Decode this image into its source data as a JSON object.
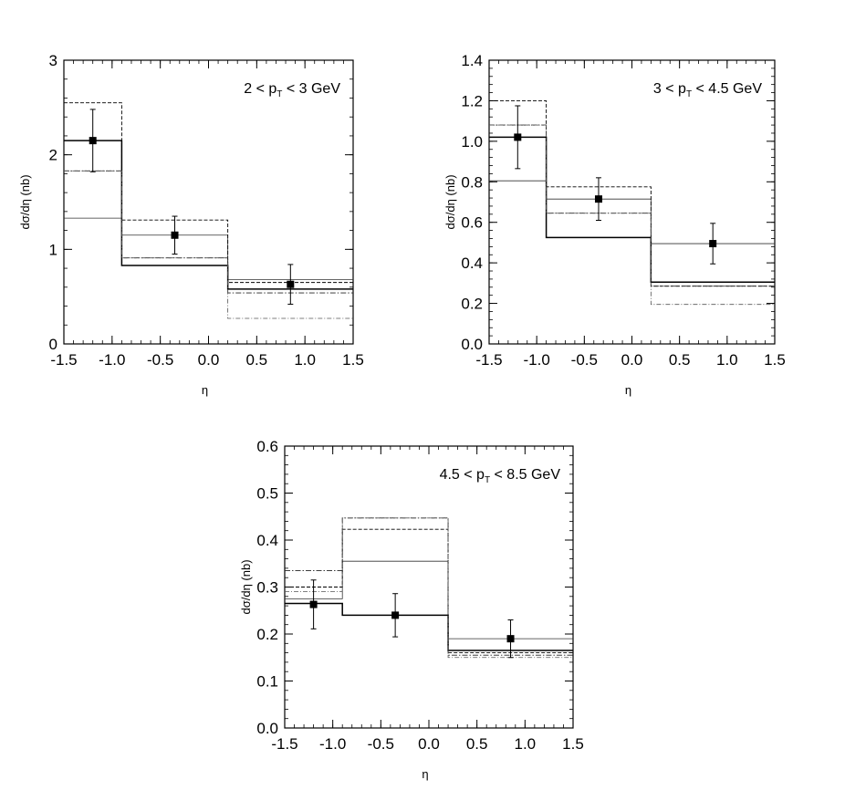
{
  "chart_data": [
    {
      "type": "step",
      "panel_label": {
        "pre": "2 < p",
        "sub": "T",
        "post": " < 3 GeV"
      },
      "xlabel": "η",
      "ylabel": "dσ/dη (nb)",
      "xlim": [
        -1.5,
        1.5
      ],
      "ylim": [
        0,
        3
      ],
      "xticks": [
        "-1.5",
        "-1.0",
        "-0.5",
        "0.0",
        "0.5",
        "1.0",
        "1.5"
      ],
      "yticks": [
        "0",
        "1",
        "2",
        "3"
      ],
      "bin_edges": [
        -1.5,
        -0.9,
        0.2,
        1.5
      ],
      "data_points": [
        {
          "x": -1.2,
          "y": 2.15,
          "err": 0.33
        },
        {
          "x": -0.35,
          "y": 1.15,
          "err": 0.2
        },
        {
          "x": 0.85,
          "y": 0.63,
          "err": 0.21
        }
      ],
      "curves": [
        {
          "style": "solid-thick",
          "values": [
            2.15,
            0.83,
            0.58
          ]
        },
        {
          "style": "solid-thin",
          "values": [
            1.33,
            1.15,
            0.68
          ]
        },
        {
          "style": "dashed",
          "values": [
            2.55,
            1.31,
            0.65
          ]
        },
        {
          "style": "dashdot",
          "values": [
            1.83,
            0.91,
            0.54
          ]
        },
        {
          "style": "dashdot-gray",
          "values": [
            1.83,
            0.91,
            0.27
          ]
        }
      ]
    },
    {
      "type": "step",
      "panel_label": {
        "pre": "3 < p",
        "sub": "T",
        "post": " < 4.5 GeV"
      },
      "xlabel": "η",
      "ylabel": "dσ/dη (nb)",
      "xlim": [
        -1.5,
        1.5
      ],
      "ylim": [
        0,
        1.4
      ],
      "xticks": [
        "-1.5",
        "-1.0",
        "-0.5",
        "0.0",
        "0.5",
        "1.0",
        "1.5"
      ],
      "yticks": [
        "0.0",
        "0.2",
        "0.4",
        "0.6",
        "0.8",
        "1.0",
        "1.2",
        "1.4"
      ],
      "bin_edges": [
        -1.5,
        -0.9,
        0.2,
        1.5
      ],
      "data_points": [
        {
          "x": -1.2,
          "y": 1.02,
          "err": 0.155
        },
        {
          "x": -0.35,
          "y": 0.715,
          "err": 0.105
        },
        {
          "x": 0.85,
          "y": 0.495,
          "err": 0.1
        }
      ],
      "curves": [
        {
          "style": "solid-thick",
          "values": [
            1.02,
            0.525,
            0.305
          ]
        },
        {
          "style": "solid-thin",
          "values": [
            0.805,
            0.715,
            0.495
          ]
        },
        {
          "style": "dashed",
          "values": [
            1.2,
            0.775,
            0.285
          ]
        },
        {
          "style": "dashdot",
          "values": [
            1.08,
            0.645,
            0.285
          ]
        },
        {
          "style": "dashdot-gray",
          "values": [
            1.08,
            0.645,
            0.195
          ]
        }
      ]
    },
    {
      "type": "step",
      "panel_label": {
        "pre": "4.5 < p",
        "sub": "T",
        "post": " < 8.5 GeV"
      },
      "xlabel": "η",
      "ylabel": "dσ/dη (nb)",
      "xlim": [
        -1.5,
        1.5
      ],
      "ylim": [
        0,
        0.6
      ],
      "xticks": [
        "-1.5",
        "-1.0",
        "-0.5",
        "0.0",
        "0.5",
        "1.0",
        "1.5"
      ],
      "yticks": [
        "0.0",
        "0.1",
        "0.2",
        "0.3",
        "0.4",
        "0.5",
        "0.6"
      ],
      "bin_edges": [
        -1.5,
        -0.9,
        0.2,
        1.5
      ],
      "data_points": [
        {
          "x": -1.2,
          "y": 0.263,
          "err": 0.052
        },
        {
          "x": -0.35,
          "y": 0.24,
          "err": 0.046
        },
        {
          "x": 0.85,
          "y": 0.19,
          "err": 0.04
        }
      ],
      "curves": [
        {
          "style": "solid-thick",
          "values": [
            0.265,
            0.24,
            0.165
          ]
        },
        {
          "style": "solid-thin",
          "values": [
            0.275,
            0.355,
            0.19
          ]
        },
        {
          "style": "dashed",
          "values": [
            0.3,
            0.423,
            0.16
          ]
        },
        {
          "style": "dashdot",
          "values": [
            0.335,
            0.447,
            0.155
          ]
        },
        {
          "style": "dashdot-gray",
          "values": [
            0.29,
            0.447,
            0.15
          ]
        }
      ]
    }
  ]
}
